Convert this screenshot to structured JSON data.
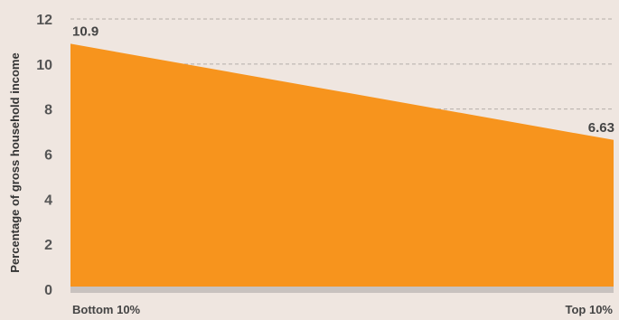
{
  "chart_data": {
    "type": "area",
    "title": "",
    "xlabel": "",
    "ylabel": "Percentage of  gross household income",
    "categories": [
      "Bottom 10%",
      "Top 10%"
    ],
    "values": [
      10.9,
      6.63
    ],
    "data_labels": [
      "10.9",
      "6.63"
    ],
    "ylim": [
      0,
      12
    ],
    "yticks": [
      0,
      2,
      4,
      6,
      8,
      10,
      12
    ],
    "grid": true,
    "legend": "none",
    "colors": {
      "area": "#f7941d",
      "baseline": "#c8c2bf",
      "grid": "#b5aea9",
      "background": "#efe6e0"
    }
  }
}
